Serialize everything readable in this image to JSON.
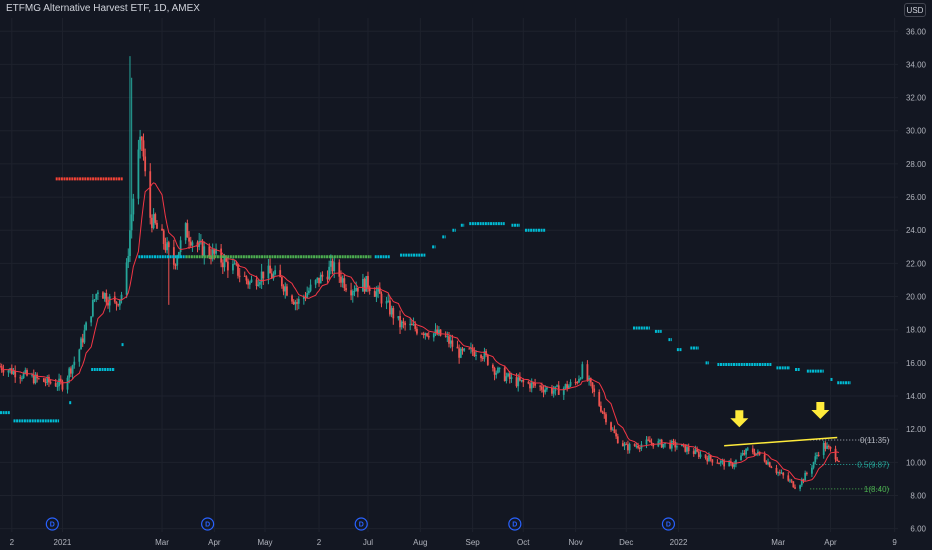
{
  "header": {
    "title": "ETFMG Alternative Harvest ETF, 1D, AMEX",
    "currency": "USD"
  },
  "colors": {
    "background": "#131722",
    "grid": "#1e222d",
    "up": "#26a69a",
    "down": "#ef5350",
    "ma_line": "#f23645",
    "cyan_levels": "#00bcd4",
    "green_level": "#4caf50",
    "red_level": "#f44336",
    "trendline": "#ffeb3b",
    "arrow": "#ffeb3b",
    "dividend": "#2962ff"
  },
  "chart_data": {
    "type": "candlestick",
    "y_axis": {
      "range": [
        5.8,
        36.8
      ],
      "ticks": [
        "6.00",
        "8.00",
        "10.00",
        "12.00",
        "14.00",
        "16.00",
        "18.00",
        "20.00",
        "22.00",
        "24.00",
        "26.00",
        "28.00",
        "30.00",
        "32.00",
        "34.00",
        "36.00"
      ]
    },
    "x_axis": {
      "ticks": [
        {
          "label": "2",
          "date": "2020-12-02"
        },
        {
          "label": "2021",
          "date": "2021-01-01"
        },
        {
          "label": "Mar",
          "date": "2021-03-01"
        },
        {
          "label": "Apr",
          "date": "2021-04-01"
        },
        {
          "label": "May",
          "date": "2021-05-01"
        },
        {
          "label": "2",
          "date": "2021-06-02"
        },
        {
          "label": "Jul",
          "date": "2021-07-01"
        },
        {
          "label": "Aug",
          "date": "2021-08-01"
        },
        {
          "label": "Sep",
          "date": "2021-09-01"
        },
        {
          "label": "Oct",
          "date": "2021-10-01"
        },
        {
          "label": "Nov",
          "date": "2021-11-01"
        },
        {
          "label": "Dec",
          "date": "2021-12-01"
        },
        {
          "label": "2022",
          "date": "2022-01-01"
        },
        {
          "label": "Mar",
          "date": "2022-03-01"
        },
        {
          "label": "Apr",
          "date": "2022-04-01"
        },
        {
          "label": "9",
          "date": "2022-05-09"
        }
      ]
    },
    "price_path": [
      [
        "2020-11-25",
        15.8
      ],
      [
        "2020-12-05",
        15.4
      ],
      [
        "2020-12-20",
        14.9
      ],
      [
        "2021-01-01",
        14.7
      ],
      [
        "2021-01-10",
        16.5
      ],
      [
        "2021-01-22",
        20.5
      ],
      [
        "2021-02-01",
        19.5
      ],
      [
        "2021-02-07",
        20.5
      ],
      [
        "2021-02-10",
        24.0
      ],
      [
        "2021-02-14",
        28.0
      ],
      [
        "2021-02-17",
        29.5
      ],
      [
        "2021-02-21",
        25.0
      ],
      [
        "2021-03-01",
        23.5
      ],
      [
        "2021-03-08",
        22.0
      ],
      [
        "2021-03-15",
        24.0
      ],
      [
        "2021-03-22",
        23.0
      ],
      [
        "2021-04-01",
        22.5
      ],
      [
        "2021-04-15",
        21.5
      ],
      [
        "2021-04-22",
        20.8
      ],
      [
        "2021-05-01",
        21.5
      ],
      [
        "2021-05-10",
        21.0
      ],
      [
        "2021-05-20",
        19.6
      ],
      [
        "2021-06-02",
        21.0
      ],
      [
        "2021-06-10",
        21.8
      ],
      [
        "2021-06-20",
        20.5
      ],
      [
        "2021-07-01",
        20.8
      ],
      [
        "2021-07-10",
        19.8
      ],
      [
        "2021-07-20",
        18.3
      ],
      [
        "2021-08-01",
        18.0
      ],
      [
        "2021-08-15",
        17.6
      ],
      [
        "2021-08-25",
        16.5
      ],
      [
        "2021-09-05",
        16.8
      ],
      [
        "2021-09-15",
        15.5
      ],
      [
        "2021-09-25",
        14.9
      ],
      [
        "2021-10-05",
        14.7
      ],
      [
        "2021-10-20",
        14.3
      ],
      [
        "2021-11-01",
        14.8
      ],
      [
        "2021-11-05",
        15.6
      ],
      [
        "2021-11-15",
        13.5
      ],
      [
        "2021-11-25",
        11.5
      ],
      [
        "2021-12-01",
        10.9
      ],
      [
        "2021-12-15",
        11.2
      ],
      [
        "2022-01-01",
        11.0
      ],
      [
        "2022-01-20",
        10.2
      ],
      [
        "2022-02-01",
        9.8
      ],
      [
        "2022-02-12",
        10.8
      ],
      [
        "2022-02-20",
        10.3
      ],
      [
        "2022-03-01",
        9.4
      ],
      [
        "2022-03-12",
        8.5
      ],
      [
        "2022-03-20",
        9.6
      ],
      [
        "2022-03-27",
        11.1
      ],
      [
        "2022-04-01",
        10.7
      ],
      [
        "2022-04-06",
        10.2
      ]
    ],
    "level_segments": [
      {
        "color": "cyan",
        "start": "2020-11-25",
        "end": "2020-12-01",
        "value": 13.0
      },
      {
        "color": "cyan",
        "start": "2020-12-03",
        "end": "2020-12-30",
        "value": 12.5
      },
      {
        "color": "cyan",
        "start": "2021-01-05",
        "end": "2021-01-06",
        "value": 13.6
      },
      {
        "color": "cyan",
        "start": "2021-01-18",
        "end": "2021-02-01",
        "value": 15.6
      },
      {
        "color": "cyan",
        "start": "2021-02-05",
        "end": "2021-02-06",
        "value": 17.1
      },
      {
        "color": "red",
        "start": "2020-12-28",
        "end": "2021-02-06",
        "value": 27.1
      },
      {
        "color": "cyan",
        "start": "2021-02-15",
        "end": "2021-03-15",
        "value": 22.4
      },
      {
        "color": "green",
        "start": "2021-03-15",
        "end": "2021-07-03",
        "value": 22.4
      },
      {
        "color": "cyan",
        "start": "2021-07-05",
        "end": "2021-07-14",
        "value": 22.4
      },
      {
        "color": "cyan",
        "start": "2021-07-20",
        "end": "2021-08-04",
        "value": 22.5
      },
      {
        "color": "cyan",
        "start": "2021-08-08",
        "end": "2021-08-10",
        "value": 23.0
      },
      {
        "color": "cyan",
        "start": "2021-08-14",
        "end": "2021-08-16",
        "value": 23.6
      },
      {
        "color": "cyan",
        "start": "2021-08-20",
        "end": "2021-08-22",
        "value": 24.0
      },
      {
        "color": "cyan",
        "start": "2021-08-25",
        "end": "2021-08-27",
        "value": 24.3
      },
      {
        "color": "cyan",
        "start": "2021-08-30",
        "end": "2021-09-20",
        "value": 24.4
      },
      {
        "color": "cyan",
        "start": "2021-09-24",
        "end": "2021-09-29",
        "value": 24.3
      },
      {
        "color": "cyan",
        "start": "2021-10-02",
        "end": "2021-10-14",
        "value": 24.0
      },
      {
        "color": "cyan",
        "start": "2021-12-05",
        "end": "2021-12-15",
        "value": 18.1
      },
      {
        "color": "cyan",
        "start": "2021-12-18",
        "end": "2021-12-22",
        "value": 17.9
      },
      {
        "color": "cyan",
        "start": "2021-12-26",
        "end": "2021-12-28",
        "value": 17.4
      },
      {
        "color": "cyan",
        "start": "2021-12-31",
        "end": "2022-01-03",
        "value": 16.8
      },
      {
        "color": "cyan",
        "start": "2022-01-08",
        "end": "2022-01-13",
        "value": 16.9
      },
      {
        "color": "cyan",
        "start": "2022-01-17",
        "end": "2022-01-19",
        "value": 16.0
      },
      {
        "color": "cyan",
        "start": "2022-01-24",
        "end": "2022-02-25",
        "value": 15.9
      },
      {
        "color": "cyan",
        "start": "2022-02-28",
        "end": "2022-03-08",
        "value": 15.7
      },
      {
        "color": "cyan",
        "start": "2022-03-11",
        "end": "2022-03-14",
        "value": 15.6
      },
      {
        "color": "cyan",
        "start": "2022-03-18",
        "end": "2022-03-28",
        "value": 15.5
      },
      {
        "color": "cyan",
        "start": "2022-04-01",
        "end": "2022-04-01",
        "value": 15.0
      },
      {
        "color": "cyan",
        "start": "2022-04-05",
        "end": "2022-04-13",
        "value": 14.8
      }
    ],
    "fibonacci": {
      "start": "2022-03-20",
      "end": "2022-05-07",
      "levels": [
        {
          "ratio": 0,
          "value": 11.35,
          "label": "0(11.35)"
        },
        {
          "ratio": 0.5,
          "value": 9.87,
          "label": "0.5(9.87)"
        },
        {
          "ratio": 1,
          "value": 8.4,
          "label": "1(8.40)"
        }
      ]
    },
    "trendline": {
      "start": [
        "2022-01-28",
        11.0
      ],
      "end": [
        "2022-04-05",
        11.5
      ]
    },
    "arrows": [
      {
        "date": "2022-02-06",
        "value": 12.6
      },
      {
        "date": "2022-03-26",
        "value": 13.1
      }
    ],
    "dividends": [
      {
        "date": "2020-12-26",
        "label": "D"
      },
      {
        "date": "2021-03-28",
        "label": "D"
      },
      {
        "date": "2021-06-27",
        "label": "D"
      },
      {
        "date": "2021-09-26",
        "label": "D"
      },
      {
        "date": "2021-12-26",
        "label": "D"
      }
    ],
    "grid": true,
    "legend": "none"
  }
}
